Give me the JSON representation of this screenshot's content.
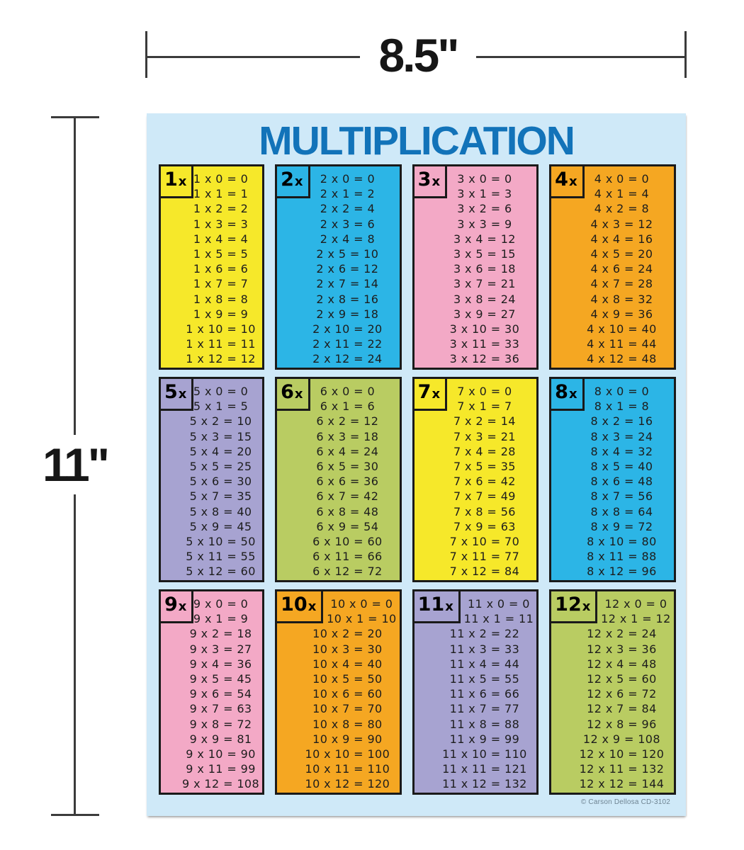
{
  "page": {
    "background": "#ffffff"
  },
  "dimensions": {
    "width_label": "8.5\"",
    "height_label": "11\""
  },
  "poster": {
    "title": "MULTIPLICATION",
    "copyright": "© Carson Dellosa CD-3102",
    "times_suffix": "x",
    "colors": {
      "poster_background": "#cfe9f8",
      "title": "#1273b9",
      "panel_border": "#1a1a1a",
      "fact_text": "#1d1d1d",
      "dimension_lines": "#3b3b3b",
      "copyright_text": "#6f8492"
    },
    "panels": [
      {
        "factor": "1",
        "color_name": "yellow",
        "color": "#f6e82a",
        "facts": [
          "1 x 0 = 0",
          "1 x 1 = 1",
          "1 x 2 = 2",
          "1 x 3 = 3",
          "1 x 4 = 4",
          "1 x 5 = 5",
          "1 x 6 = 6",
          "1 x 7 = 7",
          "1 x 8 = 8",
          "1 x 9 = 9",
          "1 x 10 = 10",
          "1 x 11 = 11",
          "1 x 12 = 12"
        ]
      },
      {
        "factor": "2",
        "color_name": "cyan",
        "color": "#2cb5e6",
        "facts": [
          "2 x 0 = 0",
          "2 x 1 = 2",
          "2 x 2 = 4",
          "2 x 3 = 6",
          "2 x 4 = 8",
          "2 x 5 = 10",
          "2 x 6 = 12",
          "2 x 7 = 14",
          "2 x 8 = 16",
          "2 x 9 = 18",
          "2 x 10 = 20",
          "2 x 11 = 22",
          "2 x 12 = 24"
        ]
      },
      {
        "factor": "3",
        "color_name": "pink",
        "color": "#f3a9c6",
        "facts": [
          "3 x 0 = 0",
          "3 x 1 = 3",
          "3 x 2 = 6",
          "3 x 3 = 9",
          "3 x 4 = 12",
          "3 x 5 = 15",
          "3 x 6 = 18",
          "3 x 7 = 21",
          "3 x 8 = 24",
          "3 x 9 = 27",
          "3 x 10 = 30",
          "3 x 11 = 33",
          "3 x 12 = 36"
        ]
      },
      {
        "factor": "4",
        "color_name": "orange",
        "color": "#f5a722",
        "facts": [
          "4 x 0 = 0",
          "4 x 1 = 4",
          "4 x 2 = 8",
          "4 x 3 = 12",
          "4 x 4 = 16",
          "4 x 5 = 20",
          "4 x 6 = 24",
          "4 x 7 = 28",
          "4 x 8 = 32",
          "4 x 9 = 36",
          "4 x 10 = 40",
          "4 x 11 = 44",
          "4 x 12 = 48"
        ]
      },
      {
        "factor": "5",
        "color_name": "purple",
        "color": "#a7a3d1",
        "facts": [
          "5 x 0 = 0",
          "5 x 1 = 5",
          "5 x 2 = 10",
          "5 x 3 = 15",
          "5 x 4 = 20",
          "5 x 5 = 25",
          "5 x 6 = 30",
          "5 x 7 = 35",
          "5 x 8 = 40",
          "5 x 9 = 45",
          "5 x 10 = 50",
          "5 x 11 = 55",
          "5 x 12 = 60"
        ]
      },
      {
        "factor": "6",
        "color_name": "green",
        "color": "#b9cc62",
        "facts": [
          "6 x 0 = 0",
          "6 x 1 = 6",
          "6 x 2 = 12",
          "6 x 3 = 18",
          "6 x 4 = 24",
          "6 x 5 = 30",
          "6 x 6 = 36",
          "6 x 7 = 42",
          "6 x 8 = 48",
          "6 x 9 = 54",
          "6 x 10 = 60",
          "6 x 11 = 66",
          "6 x 12 = 72"
        ]
      },
      {
        "factor": "7",
        "color_name": "yellow",
        "color": "#f6e82a",
        "facts": [
          "7 x 0 = 0",
          "7 x 1 = 7",
          "7 x 2 = 14",
          "7 x 3 = 21",
          "7 x 4 = 28",
          "7 x 5 = 35",
          "7 x 6 = 42",
          "7 x 7 = 49",
          "7 x 8 = 56",
          "7 x 9 = 63",
          "7 x 10 = 70",
          "7 x 11 = 77",
          "7 x 12 = 84"
        ]
      },
      {
        "factor": "8",
        "color_name": "cyan",
        "color": "#2cb5e6",
        "facts": [
          "8 x 0 = 0",
          "8 x 1 = 8",
          "8 x 2 = 16",
          "8 x 3 = 24",
          "8 x 4 = 32",
          "8 x 5 = 40",
          "8 x 6 = 48",
          "8 x 7 = 56",
          "8 x 8 = 64",
          "8 x 9 = 72",
          "8 x 10 = 80",
          "8 x 11 = 88",
          "8 x 12 = 96"
        ]
      },
      {
        "factor": "9",
        "color_name": "pink",
        "color": "#f3a9c6",
        "facts": [
          "9 x 0 = 0",
          "9 x 1 = 9",
          "9 x 2 = 18",
          "9 x 3 = 27",
          "9 x 4 = 36",
          "9 x 5 = 45",
          "9 x 6 = 54",
          "9 x 7 = 63",
          "9 x 8 = 72",
          "9 x 9 = 81",
          "9 x 10 = 90",
          "9 x 11 = 99",
          "9 x 12 = 108"
        ]
      },
      {
        "factor": "10",
        "color_name": "orange",
        "color": "#f5a722",
        "facts": [
          "10 x 0 = 0",
          "10 x 1 = 10",
          "10 x 2 = 20",
          "10 x 3 = 30",
          "10 x 4 = 40",
          "10 x 5 = 50",
          "10 x 6 = 60",
          "10 x 7 = 70",
          "10 x 8 = 80",
          "10 x 9 = 90",
          "10 x 10 = 100",
          "10 x 11 = 110",
          "10 x 12 = 120"
        ]
      },
      {
        "factor": "11",
        "color_name": "purple",
        "color": "#a7a3d1",
        "facts": [
          "11 x 0 = 0",
          "11 x 1 = 11",
          "11 x 2 = 22",
          "11 x 3 = 33",
          "11 x 4 = 44",
          "11 x 5 = 55",
          "11 x 6 = 66",
          "11 x 7 = 77",
          "11 x 8 = 88",
          "11 x 9 = 99",
          "11 x 10 = 110",
          "11 x 11 = 121",
          "11 x 12 = 132"
        ]
      },
      {
        "factor": "12",
        "color_name": "green",
        "color": "#b9cc62",
        "facts": [
          "12 x 0 = 0",
          "12 x 1 = 12",
          "12 x 2 = 24",
          "12 x 3 = 36",
          "12 x 4 = 48",
          "12 x 5 = 60",
          "12 x 6 = 72",
          "12 x 7 = 84",
          "12 x 8 = 96",
          "12 x 9 = 108",
          "12 x 10 = 120",
          "12 x 11 = 132",
          "12 x 12 = 144"
        ]
      }
    ]
  }
}
